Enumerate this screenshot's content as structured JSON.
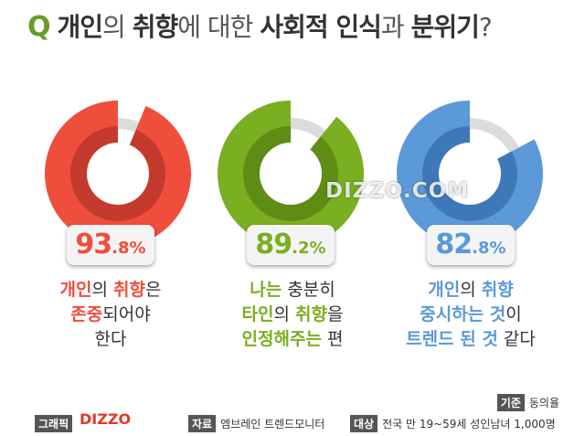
{
  "title": {
    "q": "Q",
    "parts": [
      {
        "text": "개인",
        "bold": true
      },
      {
        "text": "의 ",
        "bold": false
      },
      {
        "text": "취향",
        "bold": true
      },
      {
        "text": "에 대한 ",
        "bold": false
      },
      {
        "text": "사회적 인식",
        "bold": true
      },
      {
        "text": "과 ",
        "bold": false
      },
      {
        "text": "분위기",
        "bold": true
      },
      {
        "text": "?",
        "bold": false
      }
    ]
  },
  "chart_data": {
    "type": "pie",
    "title": "",
    "series": [
      {
        "value": 93.8,
        "display_int": "93",
        "display_dec": ".8%",
        "color": "#f04e3c",
        "inner_color": "#c43a2d",
        "desc_lines": [
          [
            {
              "text": "개인",
              "hl": true
            },
            {
              "text": "의 ",
              "hl": false
            },
            {
              "text": "취향",
              "hl": true
            },
            {
              "text": "은",
              "hl": false
            }
          ],
          [
            {
              "text": "존중",
              "hl": true
            },
            {
              "text": "되어야",
              "hl": false
            }
          ],
          [
            {
              "text": "한다",
              "hl": false
            }
          ]
        ]
      },
      {
        "value": 89.2,
        "display_int": "89",
        "display_dec": ".2%",
        "color": "#7aaf21",
        "inner_color": "#5e8c14",
        "desc_lines": [
          [
            {
              "text": "나는",
              "hl": true
            },
            {
              "text": " 충분히",
              "hl": false
            }
          ],
          [
            {
              "text": "타인",
              "hl": true
            },
            {
              "text": "의 ",
              "hl": false
            },
            {
              "text": "취향",
              "hl": true
            },
            {
              "text": "을",
              "hl": false
            }
          ],
          [
            {
              "text": "인정해주는",
              "hl": true
            },
            {
              "text": " 편",
              "hl": false
            }
          ]
        ]
      },
      {
        "value": 82.8,
        "display_int": "82",
        "display_dec": ".8%",
        "color": "#5b99d9",
        "inner_color": "#3f78b8",
        "desc_lines": [
          [
            {
              "text": "개인",
              "hl": true
            },
            {
              "text": "의 ",
              "hl": false
            },
            {
              "text": "취향",
              "hl": true
            }
          ],
          [
            {
              "text": "중시하는 것",
              "hl": true
            },
            {
              "text": "이",
              "hl": false
            }
          ],
          [
            {
              "text": "트렌드 된 것",
              "hl": true
            },
            {
              "text": " 같다",
              "hl": false
            }
          ]
        ]
      }
    ],
    "remainder_color": "#dcdcdc"
  },
  "watermark": "DIZZO.COM",
  "footer": {
    "graphic_label": "그래픽",
    "logo": "DIZZO",
    "criteria_label": "기준",
    "criteria_value": "동의율",
    "source_label": "자료",
    "source_value": "엠브레인 트렌드모니터",
    "target_label": "대상",
    "target_value": "전국 만 19~59세 성인남녀 1,000명"
  }
}
